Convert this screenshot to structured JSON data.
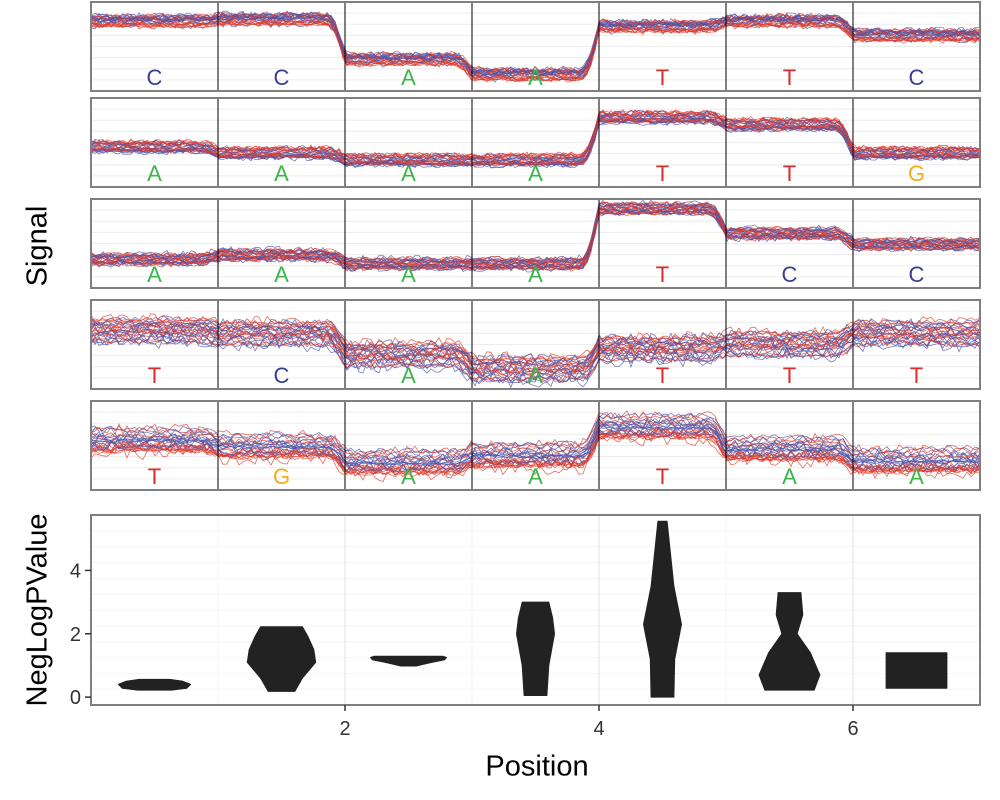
{
  "chart_data": [
    {
      "type": "line",
      "ylabel": "Signal",
      "colors": {
        "sample_a": "#4a52a8",
        "sample_b": "#e03a2a",
        "grid": "#ececec",
        "border": "#7f7f7f",
        "divider": "#000000"
      },
      "base_colors": {
        "A": "#3cb54a",
        "C": "#3b3d95",
        "G": "#f2ad1b",
        "T": "#d62d2d"
      },
      "rows": [
        {
          "bases": [
            "C",
            "C",
            "A",
            "A",
            "T",
            "T",
            "C"
          ],
          "levels": [
            0.78,
            0.8,
            0.35,
            0.18,
            0.72,
            0.78,
            0.62
          ]
        },
        {
          "bases": [
            "A",
            "A",
            "A",
            "A",
            "T",
            "T",
            "G"
          ],
          "levels": [
            0.45,
            0.38,
            0.3,
            0.3,
            0.78,
            0.7,
            0.38
          ]
        },
        {
          "bases": [
            "A",
            "A",
            "A",
            "A",
            "T",
            "C",
            "C"
          ],
          "levels": [
            0.33,
            0.38,
            0.28,
            0.28,
            0.9,
            0.62,
            0.5
          ]
        },
        {
          "bases": [
            "T",
            "C",
            "A",
            "A",
            "T",
            "T",
            "T"
          ],
          "levels": [
            0.65,
            0.62,
            0.38,
            0.22,
            0.45,
            0.5,
            0.62
          ]
        },
        {
          "bases": [
            "T",
            "G",
            "A",
            "A",
            "T",
            "A",
            "A"
          ],
          "levels": [
            0.55,
            0.48,
            0.3,
            0.38,
            0.7,
            0.45,
            0.32
          ]
        }
      ]
    },
    {
      "type": "violin",
      "xlabel": "Position",
      "ylabel": "NegLogPValue",
      "xlim": [
        0.0,
        7.0
      ],
      "ylim": [
        -0.25,
        5.75
      ],
      "xticks": [
        2,
        4,
        6
      ],
      "yticks": [
        0,
        2,
        4
      ],
      "fill": "#222222",
      "violins": [
        {
          "x": 0.5,
          "profile": [
            [
              0.22,
              0.45
            ],
            [
              0.28,
              0.85
            ],
            [
              0.4,
              0.95
            ],
            [
              0.5,
              0.75
            ],
            [
              0.56,
              0.4
            ]
          ]
        },
        {
          "x": 1.5,
          "profile": [
            [
              0.18,
              0.35
            ],
            [
              0.6,
              0.55
            ],
            [
              1.1,
              0.9
            ],
            [
              1.5,
              0.85
            ],
            [
              1.9,
              0.7
            ],
            [
              2.22,
              0.55
            ]
          ]
        },
        {
          "x": 2.5,
          "profile": [
            [
              0.98,
              0.2
            ],
            [
              1.08,
              0.55
            ],
            [
              1.18,
              0.95
            ],
            [
              1.25,
              1.0
            ],
            [
              1.29,
              0.9
            ]
          ]
        },
        {
          "x": 3.5,
          "profile": [
            [
              0.05,
              0.3
            ],
            [
              1.0,
              0.35
            ],
            [
              2.0,
              0.5
            ],
            [
              2.5,
              0.45
            ],
            [
              3.0,
              0.35
            ]
          ]
        },
        {
          "x": 4.5,
          "profile": [
            [
              0.0,
              0.3
            ],
            [
              1.2,
              0.32
            ],
            [
              2.3,
              0.5
            ],
            [
              3.5,
              0.3
            ],
            [
              5.55,
              0.12
            ]
          ]
        },
        {
          "x": 5.5,
          "profile": [
            [
              0.22,
              0.65
            ],
            [
              0.7,
              0.8
            ],
            [
              1.4,
              0.55
            ],
            [
              2.0,
              0.2
            ],
            [
              2.6,
              0.35
            ],
            [
              3.3,
              0.3
            ]
          ]
        },
        {
          "x": 6.5,
          "profile": [
            [
              0.28,
              0.8
            ],
            [
              0.6,
              0.8
            ],
            [
              1.0,
              0.8
            ],
            [
              1.4,
              0.8
            ]
          ]
        }
      ]
    }
  ]
}
